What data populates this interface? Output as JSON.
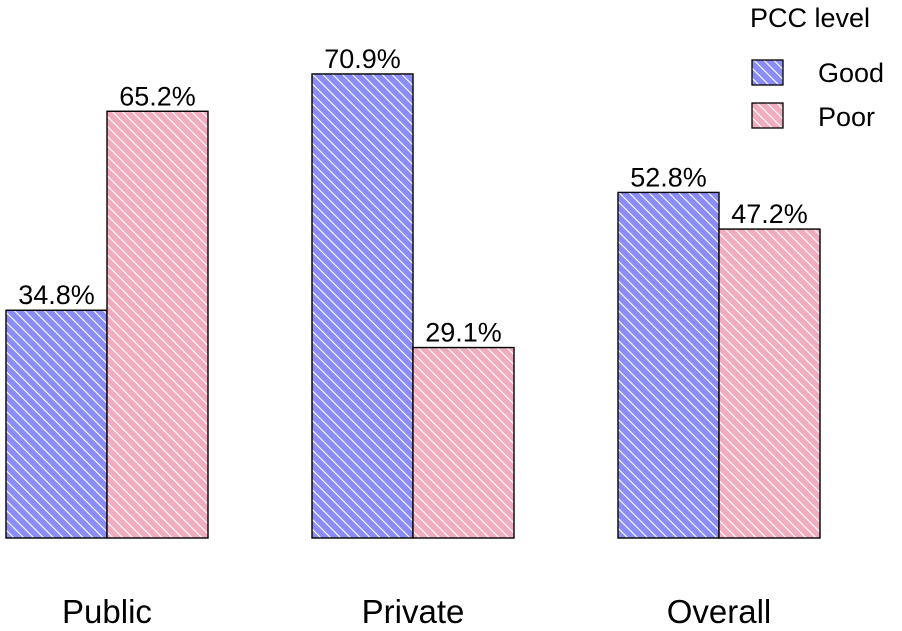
{
  "chart_data": {
    "type": "bar",
    "title": "",
    "xlabel": "",
    "ylabel": "",
    "categories": [
      "Public",
      "Private",
      "Overall"
    ],
    "series": [
      {
        "name": "Good",
        "values": [
          34.8,
          70.9,
          52.8
        ],
        "labels": [
          "34.8%",
          "70.9%",
          "52.8%"
        ],
        "color": "#8080ff"
      },
      {
        "name": "Poor",
        "values": [
          65.2,
          29.1,
          47.2
        ],
        "labels": [
          "65.2%",
          "29.1%",
          "47.2%"
        ],
        "color": "#f4b6c6"
      }
    ],
    "ylim": [
      0,
      80
    ],
    "grid": false,
    "legend": {
      "title": "PCC level",
      "placement": "top-right"
    },
    "fill_pattern": "diagonal-hatch"
  }
}
